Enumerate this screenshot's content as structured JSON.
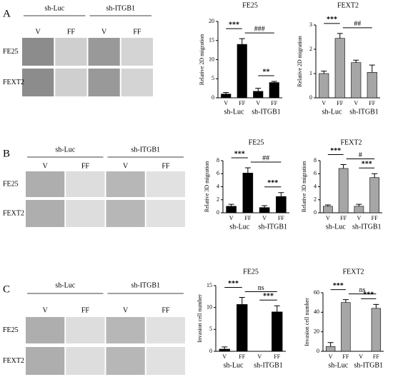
{
  "figure": {
    "panels": [
      {
        "letter": "A",
        "groups": [
          "sh-Luc",
          "sh-ITGB1"
        ],
        "conditions": [
          "V",
          "FF",
          "V",
          "FF"
        ],
        "rows": [
          "FE25",
          "FEXT2"
        ]
      },
      {
        "letter": "B",
        "groups": [
          "sh-Luc",
          "sh-ITGB1"
        ],
        "conditions": [
          "V",
          "FF",
          "V",
          "FF"
        ],
        "rows": [
          "FE25",
          "FEXT2"
        ]
      },
      {
        "letter": "C",
        "groups": [
          "sh-Luc",
          "sh-ITGB1"
        ],
        "conditions": [
          "V",
          "FF",
          "V",
          "FF"
        ],
        "rows": [
          "FE25",
          "FEXT2"
        ]
      }
    ]
  },
  "chart_data": [
    {
      "type": "bar",
      "title": "FE25",
      "y_label": "Relative 2D migration",
      "categories": [
        "V",
        "FF",
        "V",
        "FF"
      ],
      "groups": [
        "sh-Luc",
        "sh-ITGB1"
      ],
      "values": [
        1,
        14,
        1.7,
        4
      ],
      "errors": [
        0.4,
        1.5,
        0.8,
        0.3
      ],
      "color": "#000000",
      "ylim": [
        0,
        20
      ],
      "yticks": [
        0,
        5,
        10,
        15,
        20
      ],
      "annotations": [
        "***",
        "###",
        "**"
      ]
    },
    {
      "type": "bar",
      "title": "FEXT2",
      "y_label": "Relative 2D migration",
      "categories": [
        "V",
        "FF",
        "V",
        "FF"
      ],
      "groups": [
        "sh-Luc",
        "sh-ITGB1"
      ],
      "values": [
        1,
        2.45,
        1.45,
        1.05
      ],
      "errors": [
        0.1,
        0.2,
        0.1,
        0.3
      ],
      "color": "#a6a6a6",
      "ylim": [
        0,
        3
      ],
      "yticks": [
        0,
        1,
        2,
        3
      ],
      "annotations": [
        "***",
        "##"
      ]
    },
    {
      "type": "bar",
      "title": "FE25",
      "y_label": "Relative 3D migration",
      "categories": [
        "V",
        "FF",
        "V",
        "FF"
      ],
      "groups": [
        "sh-Luc",
        "sh-ITGB1"
      ],
      "values": [
        1,
        6.1,
        0.8,
        2.5
      ],
      "errors": [
        0.3,
        0.8,
        0.3,
        0.6
      ],
      "color": "#000000",
      "ylim": [
        0,
        8
      ],
      "yticks": [
        0,
        2,
        4,
        6,
        8
      ],
      "annotations": [
        "***",
        "##",
        "***"
      ]
    },
    {
      "type": "bar",
      "title": "FEXT2",
      "y_label": "Relative 3D migration",
      "categories": [
        "V",
        "FF",
        "V",
        "FF"
      ],
      "groups": [
        "sh-Luc",
        "sh-ITGB1"
      ],
      "values": [
        1,
        6.8,
        1,
        5.4
      ],
      "errors": [
        0.2,
        0.6,
        0.3,
        0.6
      ],
      "color": "#a6a6a6",
      "ylim": [
        0,
        8
      ],
      "yticks": [
        0,
        2,
        4,
        6,
        8
      ],
      "annotations": [
        "***",
        "#",
        "***"
      ]
    },
    {
      "type": "bar",
      "title": "FE25",
      "y_label": "Invasion cell number",
      "categories": [
        "V",
        "FF",
        "V",
        "FF"
      ],
      "groups": [
        "sh-Luc",
        "sh-ITGB1"
      ],
      "values": [
        0.5,
        10.7,
        0,
        9
      ],
      "errors": [
        0.5,
        1.6,
        0,
        1.4
      ],
      "color": "#000000",
      "ylim": [
        0,
        15
      ],
      "yticks": [
        0,
        5,
        10,
        15
      ],
      "annotations": [
        "***",
        "ns",
        "***"
      ]
    },
    {
      "type": "bar",
      "title": "FEXT2",
      "y_label": "Invasion cell number",
      "categories": [
        "V",
        "FF",
        "V",
        "FF"
      ],
      "groups": [
        "sh-Luc",
        "sh-ITGB1"
      ],
      "values": [
        5,
        50,
        0,
        44
      ],
      "errors": [
        4,
        3,
        0,
        4
      ],
      "color": "#a6a6a6",
      "ylim": [
        0,
        60
      ],
      "yticks": [
        0,
        20,
        40,
        60
      ],
      "annotations": [
        "***",
        "ns",
        "***"
      ]
    }
  ]
}
